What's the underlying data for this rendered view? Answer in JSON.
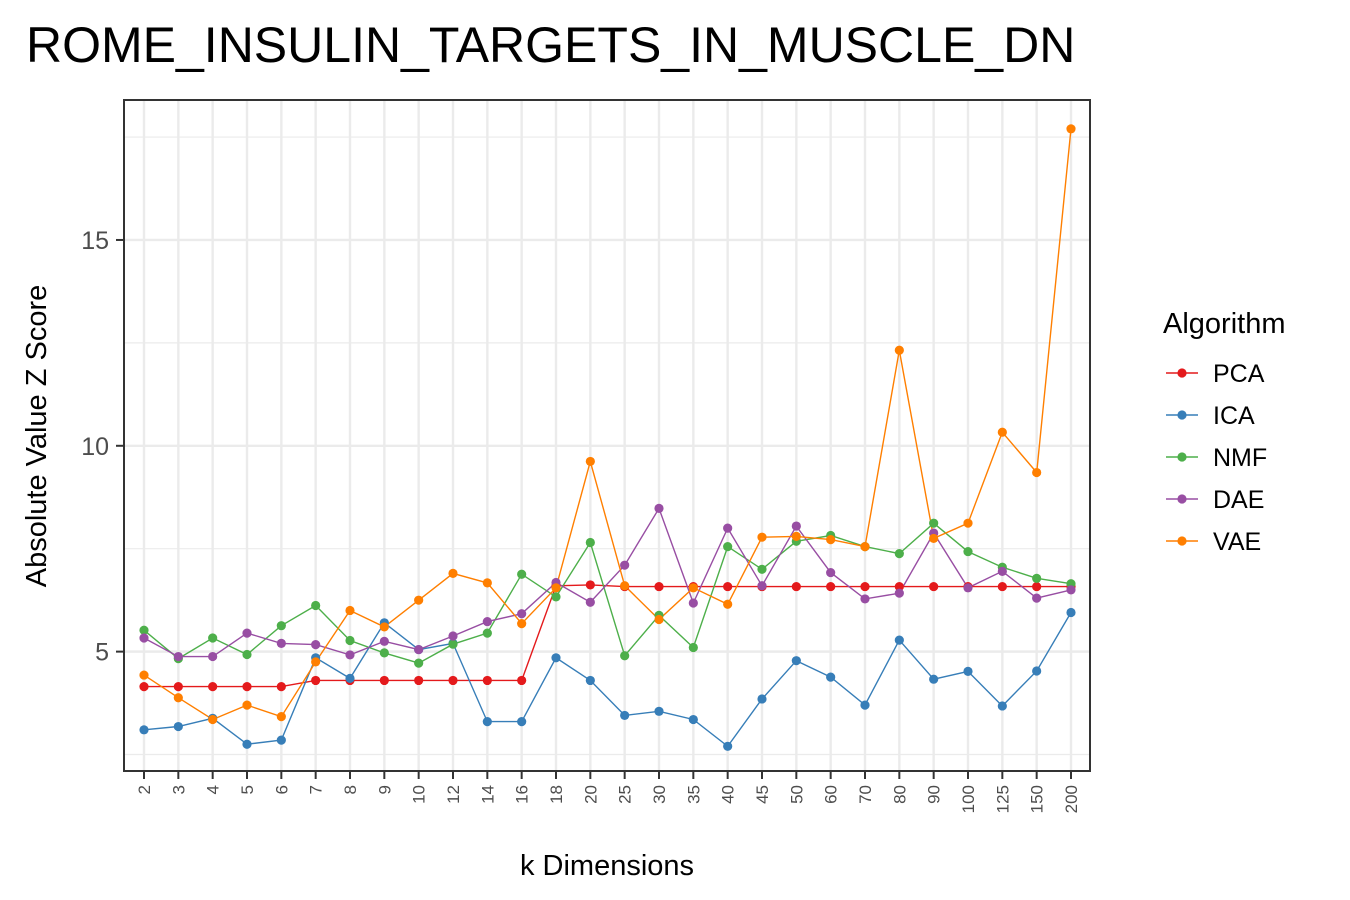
{
  "chart_data": {
    "type": "line",
    "title": "ROME_INSULIN_TARGETS_IN_MUSCLE_DN",
    "xlabel": "k Dimensions",
    "ylabel": "Absolute Value Z Score",
    "categories": [
      "2",
      "3",
      "4",
      "5",
      "6",
      "7",
      "8",
      "9",
      "10",
      "12",
      "14",
      "16",
      "18",
      "20",
      "25",
      "30",
      "35",
      "40",
      "45",
      "50",
      "60",
      "70",
      "80",
      "90",
      "100",
      "125",
      "150",
      "200"
    ],
    "yticks": [
      5,
      10,
      15
    ],
    "ylim": [
      2.1,
      18.4
    ],
    "grid": true,
    "legend": {
      "title": "Algorithm",
      "position": "right"
    },
    "series": [
      {
        "name": "PCA",
        "color": "#E41A1C",
        "values": [
          4.15,
          4.15,
          4.15,
          4.15,
          4.15,
          4.3,
          4.3,
          4.3,
          4.3,
          4.3,
          4.3,
          4.3,
          6.6,
          6.62,
          6.58,
          6.58,
          6.58,
          6.58,
          6.58,
          6.58,
          6.58,
          6.58,
          6.58,
          6.58,
          6.58,
          6.58,
          6.58,
          6.58
        ]
      },
      {
        "name": "ICA",
        "color": "#377EB8",
        "values": [
          3.1,
          3.18,
          3.38,
          2.75,
          2.85,
          4.85,
          4.35,
          5.7,
          5.05,
          5.2,
          3.3,
          3.3,
          4.85,
          4.3,
          3.45,
          3.55,
          3.35,
          2.7,
          3.85,
          4.78,
          4.38,
          3.7,
          5.28,
          4.33,
          4.52,
          3.68,
          4.53,
          5.95
        ]
      },
      {
        "name": "NMF",
        "color": "#4DAF4A",
        "values": [
          5.52,
          4.83,
          5.33,
          4.93,
          5.63,
          6.12,
          5.27,
          4.97,
          4.72,
          5.18,
          5.45,
          6.88,
          6.33,
          7.65,
          4.9,
          5.88,
          5.1,
          7.55,
          7.0,
          7.68,
          7.82,
          7.55,
          7.38,
          8.12,
          7.43,
          7.05,
          6.78,
          6.65
        ]
      },
      {
        "name": "DAE",
        "color": "#984EA3",
        "values": [
          5.33,
          4.88,
          4.88,
          5.45,
          5.2,
          5.17,
          4.92,
          5.25,
          5.05,
          5.38,
          5.73,
          5.92,
          6.68,
          6.2,
          7.1,
          8.48,
          6.18,
          8.0,
          6.6,
          8.05,
          6.92,
          6.28,
          6.42,
          7.88,
          6.55,
          6.95,
          6.3,
          6.5
        ]
      },
      {
        "name": "VAE",
        "color": "#FF7F00",
        "values": [
          4.43,
          3.88,
          3.35,
          3.7,
          3.42,
          4.75,
          6.0,
          5.6,
          6.25,
          6.9,
          6.67,
          5.68,
          6.55,
          9.62,
          6.6,
          5.78,
          6.55,
          6.15,
          7.78,
          7.8,
          7.72,
          7.55,
          12.32,
          7.75,
          8.12,
          10.33,
          9.35,
          17.7
        ]
      }
    ]
  }
}
